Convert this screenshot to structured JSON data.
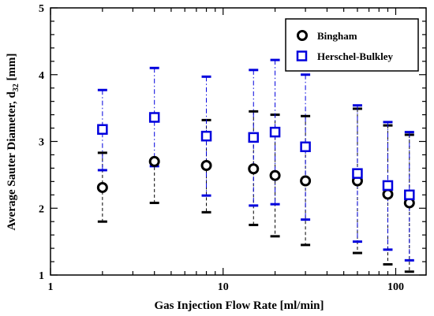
{
  "chart_data": {
    "type": "scatter",
    "xlabel": "Gas Injection Flow Rate [ml/min]",
    "ylabel_main": "Average Sauter Diameter, d",
    "ylabel_sub": "32",
    "ylabel_unit": " [mm]",
    "x_scale": "log",
    "xlim": [
      1,
      150
    ],
    "ylim": [
      1,
      5
    ],
    "grid": false,
    "legend_position": "top-right",
    "x_ticks": [
      {
        "value": 1,
        "label": "1"
      },
      {
        "value": 10,
        "label": "10"
      },
      {
        "value": 100,
        "label": "100"
      }
    ],
    "y_ticks": [
      {
        "value": 1,
        "label": "1"
      },
      {
        "value": 2,
        "label": "2"
      },
      {
        "value": 3,
        "label": "3"
      },
      {
        "value": 4,
        "label": "4"
      },
      {
        "value": 5,
        "label": "5"
      }
    ],
    "series": [
      {
        "name": "Bingham",
        "marker": "circle",
        "color": "#000000",
        "error_dash": "dashed",
        "x": [
          2,
          4,
          8,
          15,
          20,
          30,
          60,
          90,
          120
        ],
        "y": [
          2.31,
          2.7,
          2.64,
          2.59,
          2.49,
          2.41,
          2.41,
          2.21,
          2.08
        ],
        "err_low": [
          1.8,
          2.08,
          1.94,
          1.75,
          1.58,
          1.45,
          1.33,
          1.16,
          1.05
        ],
        "err_high": [
          2.83,
          2.7,
          3.32,
          3.45,
          3.4,
          3.38,
          3.49,
          3.24,
          3.1
        ]
      },
      {
        "name": "Herschel-Bulkley",
        "marker": "square",
        "color": "#0000dd",
        "error_dash": "dashdot",
        "x": [
          2,
          4,
          8,
          15,
          20,
          30,
          60,
          90,
          120
        ],
        "y": [
          3.18,
          3.36,
          3.08,
          3.06,
          3.14,
          2.92,
          2.52,
          2.34,
          2.2
        ],
        "err_low": [
          2.57,
          2.63,
          2.19,
          2.04,
          2.06,
          1.83,
          1.5,
          1.38,
          1.22
        ],
        "err_high": [
          3.77,
          4.1,
          3.97,
          4.07,
          4.22,
          4.0,
          3.54,
          3.29,
          3.14
        ]
      }
    ]
  }
}
